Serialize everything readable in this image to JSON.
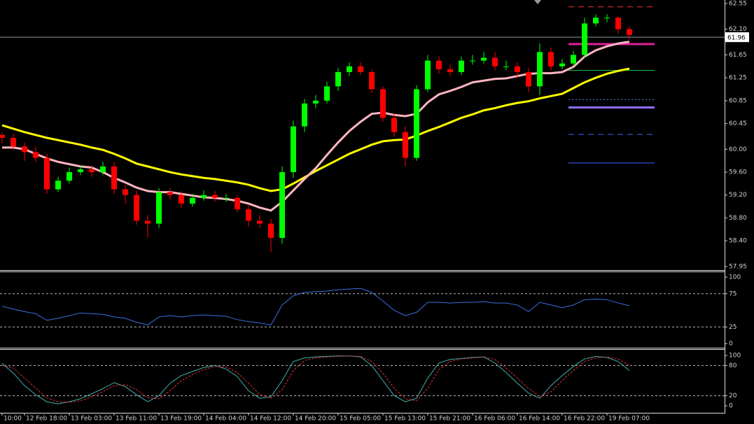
{
  "chart_data": [
    {
      "type": "candlestick",
      "categories": [
        "10:00",
        null,
        "12 Feb 18:00",
        null,
        null,
        null,
        "13 Feb 03:00",
        null,
        null,
        null,
        "13 Feb 11:00",
        null,
        null,
        null,
        "13 Feb 19:00",
        null,
        null,
        null,
        "14 Feb 04:00",
        null,
        null,
        null,
        "14 Feb 12:00",
        null,
        null,
        null,
        "14 Feb 20:00",
        null,
        null,
        null,
        "15 Feb 05:00",
        null,
        null,
        null,
        "15 Feb 13:00",
        null,
        null,
        null,
        "15 Feb 21:00",
        null,
        null,
        null,
        "16 Feb 06:00",
        null,
        null,
        null,
        "16 Feb 14:00",
        null,
        null,
        null,
        "16 Feb 22:00",
        null,
        null,
        null,
        "19 Feb 07:00",
        null,
        null
      ],
      "open": [
        60.25,
        60.2,
        60.05,
        59.95,
        59.85,
        59.3,
        59.45,
        59.6,
        59.65,
        59.6,
        59.7,
        59.3,
        59.2,
        58.75,
        58.7,
        59.25,
        59.2,
        59.05,
        59.15,
        59.2,
        59.15,
        59.15,
        58.95,
        58.75,
        58.7,
        58.45,
        59.6,
        60.4,
        60.8,
        60.85,
        61.1,
        61.35,
        61.45,
        61.35,
        61.05,
        60.55,
        60.3,
        59.85,
        61.05,
        61.55,
        61.4,
        61.35,
        61.55,
        61.55,
        61.6,
        61.45,
        61.45,
        61.35,
        61.1,
        61.7,
        61.45,
        61.5,
        61.65,
        62.2,
        62.3,
        62.3,
        62.1
      ],
      "high": [
        60.3,
        60.28,
        60.12,
        60.05,
        59.92,
        59.52,
        59.68,
        59.72,
        59.72,
        59.78,
        59.78,
        59.38,
        59.28,
        58.85,
        59.32,
        59.32,
        59.26,
        59.22,
        59.28,
        59.27,
        59.22,
        59.2,
        59.02,
        58.85,
        58.78,
        59.7,
        60.5,
        60.88,
        60.95,
        61.18,
        61.42,
        61.52,
        61.52,
        61.4,
        61.1,
        60.62,
        60.4,
        61.12,
        61.65,
        61.62,
        61.48,
        61.62,
        61.65,
        61.7,
        61.7,
        61.55,
        61.52,
        61.42,
        61.85,
        61.78,
        61.58,
        61.72,
        62.3,
        62.36,
        62.36,
        62.32,
        62.15
      ],
      "low": [
        60.1,
        59.98,
        59.8,
        59.78,
        59.22,
        59.25,
        59.4,
        59.55,
        59.52,
        59.55,
        59.22,
        59.05,
        58.68,
        58.45,
        58.62,
        59.12,
        58.98,
        59.0,
        59.1,
        59.08,
        59.08,
        58.9,
        58.65,
        58.62,
        58.2,
        58.35,
        59.5,
        60.3,
        60.72,
        60.8,
        61.02,
        61.28,
        61.3,
        60.98,
        60.48,
        60.22,
        59.7,
        59.8,
        61.0,
        61.32,
        61.28,
        61.3,
        61.48,
        61.5,
        61.38,
        61.38,
        61.25,
        61.0,
        60.95,
        61.38,
        61.4,
        61.45,
        61.6,
        62.15,
        62.22,
        62.02,
        61.92
      ],
      "close": [
        60.2,
        60.05,
        59.95,
        59.85,
        59.3,
        59.45,
        59.6,
        59.65,
        59.6,
        59.7,
        59.3,
        59.2,
        58.75,
        58.7,
        59.25,
        59.2,
        59.05,
        59.15,
        59.2,
        59.15,
        59.15,
        58.95,
        58.75,
        58.7,
        58.45,
        59.6,
        60.4,
        60.8,
        60.85,
        61.1,
        61.35,
        61.45,
        61.35,
        61.05,
        60.55,
        60.3,
        59.85,
        61.05,
        61.55,
        61.4,
        61.35,
        61.55,
        61.55,
        61.6,
        61.45,
        61.45,
        61.35,
        61.1,
        61.7,
        61.45,
        61.5,
        61.65,
        62.2,
        62.3,
        62.3,
        62.1,
        62.0
      ],
      "up_color": "#00ff00",
      "down_color": "#ff0000",
      "series": [
        {
          "color": "#ffff00",
          "values": [
            60.42,
            60.36,
            60.3,
            60.25,
            60.2,
            60.16,
            60.12,
            60.08,
            60.03,
            59.99,
            59.92,
            59.84,
            59.75,
            59.7,
            59.65,
            59.6,
            59.56,
            59.53,
            59.5,
            59.48,
            59.45,
            59.42,
            59.38,
            59.32,
            59.27,
            59.3,
            59.4,
            59.51,
            59.62,
            59.72,
            59.82,
            59.92,
            60.0,
            60.08,
            60.14,
            60.16,
            60.17,
            60.24,
            60.32,
            60.39,
            60.47,
            60.55,
            60.61,
            60.68,
            60.72,
            60.77,
            60.81,
            60.84,
            60.89,
            60.93,
            60.97,
            61.07,
            61.17,
            61.25,
            61.32,
            61.37,
            61.41
          ]
        },
        {
          "color": "#ffb6c1",
          "values": [
            60.03,
            60.03,
            60.0,
            59.92,
            59.84,
            59.78,
            59.74,
            59.7,
            59.68,
            59.6,
            59.5,
            59.42,
            59.33,
            59.27,
            59.25,
            59.25,
            59.22,
            59.19,
            59.16,
            59.15,
            59.13,
            59.1,
            59.05,
            58.98,
            58.93,
            59.08,
            59.28,
            59.48,
            59.67,
            59.9,
            60.12,
            60.32,
            60.48,
            60.62,
            60.64,
            60.6,
            60.58,
            60.62,
            60.82,
            60.96,
            61.02,
            61.09,
            61.17,
            61.2,
            61.23,
            61.24,
            61.28,
            61.32,
            61.33,
            61.33,
            61.35,
            61.44,
            61.62,
            61.73,
            61.8,
            61.85,
            61.88
          ]
        }
      ],
      "levels": [
        {
          "value": 62.49,
          "color": "#ff3030",
          "style": "dashed"
        },
        {
          "value": 61.84,
          "color": "#e0209a",
          "style": "thick"
        },
        {
          "value": 61.38,
          "color": "#20c040",
          "style": "solid"
        },
        {
          "value": 60.87,
          "color": "#6080ff",
          "style": "dotted"
        },
        {
          "value": 60.73,
          "color": "#9370ff",
          "style": "thick"
        },
        {
          "value": 60.26,
          "color": "#4060ff",
          "style": "dashed"
        },
        {
          "value": 59.76,
          "color": "#4060ff",
          "style": "solid"
        }
      ],
      "current_price": 61.96,
      "ylim": [
        57.9,
        62.61
      ],
      "yticks": [
        62.55,
        {
          "value": 62.1,
          "label": "62.10"
        },
        61.65,
        61.25,
        60.85,
        60.45,
        {
          "value": 60.0,
          "label": "60.00"
        },
        {
          "value": 59.6,
          "label": "59.60"
        },
        {
          "value": 59.2,
          "label": "59.20"
        },
        {
          "value": 58.8,
          "label": "58.80"
        },
        {
          "value": 58.4,
          "label": "58.40"
        },
        57.95
      ]
    },
    {
      "type": "line",
      "series": [
        {
          "color": "#3a6fe0",
          "style": "solid",
          "values": [
            56,
            52,
            48,
            45,
            35,
            38,
            42,
            46,
            45,
            44,
            40,
            38,
            32,
            28,
            40,
            42,
            40,
            42,
            43,
            42,
            41,
            36,
            33,
            31,
            28,
            58,
            72,
            77,
            78,
            79,
            81,
            82,
            83,
            77,
            64,
            50,
            42,
            47,
            62,
            62,
            61,
            62,
            62,
            63,
            61,
            61,
            58,
            48,
            62,
            58,
            54,
            58,
            66,
            67,
            66,
            61,
            57
          ]
        }
      ],
      "levels": [
        75,
        25
      ],
      "ylim": [
        -6.3,
        107.4
      ],
      "yticks": [
        100,
        75,
        25,
        0
      ]
    },
    {
      "type": "line",
      "series": [
        {
          "color": "#40b0b0",
          "style": "solid",
          "values": [
            84,
            65,
            40,
            22,
            8,
            4,
            8,
            14,
            24,
            34,
            46,
            38,
            22,
            8,
            20,
            45,
            60,
            68,
            76,
            80,
            73,
            58,
            30,
            15,
            18,
            50,
            88,
            95,
            97,
            98,
            99,
            99,
            97,
            80,
            50,
            20,
            8,
            15,
            55,
            85,
            92,
            94,
            96,
            97,
            85,
            66,
            45,
            25,
            15,
            40,
            60,
            78,
            93,
            98,
            96,
            88,
            70
          ]
        },
        {
          "color": "#e03030",
          "style": "dashed",
          "values": [
            80,
            75,
            55,
            35,
            16,
            8,
            7,
            10,
            18,
            28,
            40,
            42,
            32,
            16,
            14,
            30,
            50,
            62,
            72,
            78,
            77,
            66,
            45,
            22,
            15,
            32,
            70,
            90,
            95,
            97,
            98,
            99,
            98,
            88,
            65,
            35,
            14,
            10,
            35,
            72,
            88,
            93,
            95,
            97,
            92,
            75,
            55,
            35,
            18,
            28,
            50,
            70,
            88,
            95,
            97,
            93,
            80
          ]
        }
      ],
      "levels": [
        80,
        20
      ],
      "ylim": [
        -13.9,
        111.1
      ],
      "yticks": [
        100,
        80,
        20,
        0
      ]
    }
  ]
}
